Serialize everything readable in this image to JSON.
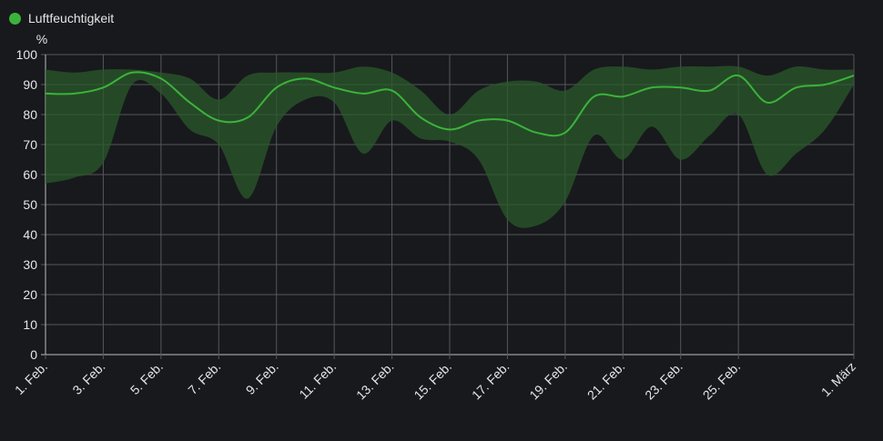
{
  "legend": {
    "label": "Luftfeuchtigkeit",
    "color": "#3bb33b"
  },
  "chart_data": {
    "type": "line",
    "title": "",
    "ylabel": "%",
    "xlabel": "",
    "ylim": [
      0,
      100
    ],
    "yticks": [
      0,
      10,
      20,
      30,
      40,
      50,
      60,
      70,
      80,
      90,
      100
    ],
    "grid": true,
    "legend_position": "top-left",
    "line_color": "#3bb33b",
    "band_color": "#2a5a2a",
    "x_ticks": [
      {
        "day": 1,
        "label": "1. Feb."
      },
      {
        "day": 3,
        "label": "3. Feb."
      },
      {
        "day": 5,
        "label": "5. Feb."
      },
      {
        "day": 7,
        "label": "7. Feb."
      },
      {
        "day": 9,
        "label": "9. Feb."
      },
      {
        "day": 11,
        "label": "11. Feb."
      },
      {
        "day": 13,
        "label": "13. Feb."
      },
      {
        "day": 15,
        "label": "15. Feb."
      },
      {
        "day": 17,
        "label": "17. Feb."
      },
      {
        "day": 19,
        "label": "19. Feb."
      },
      {
        "day": 21,
        "label": "21. Feb."
      },
      {
        "day": 23,
        "label": "23. Feb."
      },
      {
        "day": 25,
        "label": "25. Feb."
      },
      {
        "day": 29,
        "label": "1. März"
      }
    ],
    "x_range": [
      1,
      29
    ],
    "series": [
      {
        "name": "Luftfeuchtigkeit",
        "x": [
          1,
          2,
          3,
          4,
          5,
          6,
          7,
          8,
          9,
          10,
          11,
          12,
          13,
          14,
          15,
          16,
          17,
          18,
          19,
          20,
          21,
          22,
          23,
          24,
          25,
          26,
          27,
          28,
          29
        ],
        "mean": [
          87,
          87,
          89,
          94,
          92,
          84,
          78,
          79,
          89,
          92,
          89,
          87,
          88,
          79,
          75,
          78,
          78,
          74,
          74,
          86,
          86,
          89,
          89,
          88,
          93,
          84,
          89,
          90,
          93
        ],
        "max": [
          95,
          94,
          95,
          95,
          94,
          92,
          85,
          93,
          94,
          94,
          94,
          96,
          94,
          88,
          80,
          88,
          91,
          91,
          88,
          95,
          96,
          95,
          96,
          96,
          96,
          93,
          96,
          95,
          95
        ],
        "min": [
          57,
          59,
          64,
          90,
          87,
          75,
          70,
          52,
          76,
          85,
          84,
          67,
          78,
          72,
          71,
          65,
          45,
          43,
          51,
          73,
          65,
          76,
          65,
          73,
          80,
          60,
          67,
          75,
          90
        ]
      }
    ]
  }
}
